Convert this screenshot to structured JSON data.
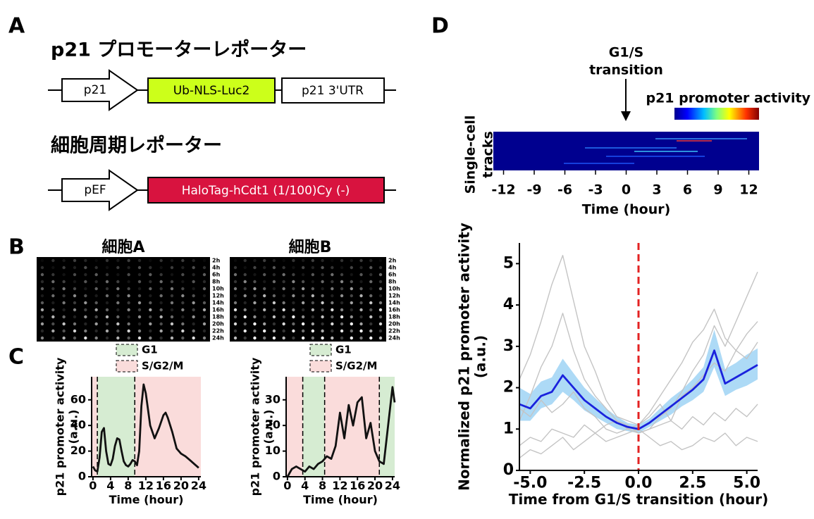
{
  "panel_labels": [
    "A",
    "B",
    "C",
    "D"
  ],
  "constructs": {
    "title_1": "p21 プロモーターレポーター",
    "row_1": [
      "p21",
      "Ub-NLS-Luc2",
      "p21 3'UTR"
    ],
    "title_2": "細胞周期レポーター",
    "row_2": [
      "pEF",
      "HaloTag-hCdt1 (1/100)Cy (-)"
    ]
  },
  "images": {
    "titles": [
      "細胞A",
      "細胞B"
    ],
    "time_labels": [
      "2h",
      "4h",
      "6h",
      "8h",
      "10h",
      "12h",
      "14h",
      "16h",
      "18h",
      "20h",
      "22h",
      "24h"
    ]
  },
  "chart_data": [
    {
      "type": "line",
      "ylabel": [
        "p21 promoter activity",
        "(a.u.)"
      ],
      "xlabel": "Time (hour)",
      "x": [
        0,
        0.5,
        1,
        1.5,
        2,
        2.5,
        3,
        3.5,
        4,
        4.5,
        5,
        5.5,
        6,
        6.5,
        7,
        7.5,
        8,
        8.5,
        9,
        9.5,
        10,
        10.5,
        11,
        11.5,
        12,
        13,
        14,
        15,
        16,
        16.5,
        17,
        18,
        19,
        20,
        21,
        22,
        23,
        24
      ],
      "values": [
        8,
        5,
        4,
        15,
        35,
        38,
        20,
        10,
        9,
        14,
        24,
        30,
        29,
        20,
        12,
        9,
        8,
        10,
        13,
        12,
        9,
        20,
        55,
        72,
        65,
        40,
        30,
        38,
        48,
        50,
        46,
        35,
        22,
        18,
        16,
        13,
        10,
        7
      ],
      "color": "#111111",
      "xlim": [
        -0.3,
        24.5
      ],
      "ylim": [
        0,
        78
      ],
      "xticks": [
        0,
        4,
        8,
        12,
        16,
        20,
        24
      ],
      "yticks": [
        0,
        20,
        40,
        60
      ],
      "phases": [
        {
          "name": "G1",
          "color": "#d6ecd2",
          "spans": [
            [
              1,
              9.5
            ]
          ]
        },
        {
          "name": "S/G2/M",
          "color": "#fadcdb",
          "spans": [
            [
              -0.3,
              1
            ],
            [
              9.5,
              24.5
            ]
          ]
        }
      ],
      "dividers": [
        1,
        9.5
      ]
    },
    {
      "type": "line",
      "ylabel": [
        "p21 promoter activity",
        "(a.u.)"
      ],
      "xlabel": "Time (hour)",
      "x": [
        0,
        1,
        2,
        3,
        4,
        5,
        6,
        7,
        8,
        9,
        10,
        11,
        12,
        13,
        14,
        15,
        16,
        17,
        18,
        19,
        20,
        21,
        22,
        23,
        24,
        24.5
      ],
      "values": [
        0,
        3,
        4,
        3,
        2,
        4,
        3,
        5,
        6,
        8,
        7,
        12,
        25,
        15,
        28,
        20,
        29,
        31,
        15,
        21,
        10,
        6,
        5,
        20,
        35,
        29
      ],
      "color": "#111111",
      "xlim": [
        -0.3,
        24.5
      ],
      "ylim": [
        0,
        39
      ],
      "xticks": [
        0,
        4,
        8,
        12,
        16,
        20,
        24
      ],
      "yticks": [
        0,
        10,
        20,
        30
      ],
      "phases": [
        {
          "name": "G1",
          "color": "#d6ecd2",
          "spans": [
            [
              3.5,
              8.5
            ],
            [
              21,
              24.5
            ]
          ]
        },
        {
          "name": "S/G2/M",
          "color": "#fadcdb",
          "spans": [
            [
              -0.3,
              3.5
            ],
            [
              8.5,
              21
            ]
          ]
        }
      ],
      "dividers": [
        3.5,
        8.5,
        21
      ]
    },
    {
      "type": "heatmap",
      "xlabel": "Time (hour)",
      "ylabel": [
        "Single-cell",
        "tracks"
      ],
      "xlim": [
        -13,
        13
      ],
      "xticks": [
        -12,
        -9,
        -6,
        -3,
        0,
        3,
        6,
        9,
        12
      ],
      "annotation": [
        "G1/S",
        "transition"
      ],
      "annotation_x": 0,
      "colorbar_label": "p21 promoter activity"
    },
    {
      "type": "line",
      "ylabel": [
        "Normalized p21 promoter activity",
        "(a.u.)"
      ],
      "xlabel": "Time from G1/S transition (hour)",
      "x": [
        -5.5,
        -5,
        -4.5,
        -4,
        -3.5,
        -3,
        -2.5,
        -2,
        -1.5,
        -1,
        -0.5,
        0,
        0.5,
        1,
        1.5,
        2,
        2.5,
        3,
        3.5,
        4,
        4.5,
        5,
        5.5
      ],
      "xlim": [
        -5.5,
        5.5
      ],
      "ylim": [
        0,
        5.5
      ],
      "xticks": [
        {
          "value": -5,
          "label": "-5.0"
        },
        -2.5,
        {
          "value": 0,
          "label": "0.0"
        },
        2.5,
        {
          "value": 5,
          "label": "5.0"
        }
      ],
      "yticks": [
        0,
        1,
        2,
        3,
        4,
        5
      ],
      "vline": {
        "x": 0,
        "color": "#e32222"
      },
      "band": {
        "color": "#9fd3f5",
        "lower": [
          1.2,
          1.2,
          1.5,
          1.6,
          1.9,
          1.7,
          1.45,
          1.3,
          1.15,
          1.0,
          0.95,
          0.9,
          1.05,
          1.2,
          1.35,
          1.55,
          1.7,
          1.9,
          2.5,
          1.8,
          1.95,
          2.05,
          2.2
        ],
        "upper": [
          2.0,
          1.85,
          2.15,
          2.25,
          2.7,
          2.35,
          2.0,
          1.75,
          1.5,
          1.3,
          1.15,
          1.1,
          1.25,
          1.5,
          1.75,
          1.95,
          2.2,
          2.5,
          3.4,
          2.45,
          2.6,
          2.8,
          2.95
        ]
      },
      "series": [
        {
          "color": "#c4c4c4",
          "values": [
            1.2,
            1.8,
            2.5,
            3.0,
            3.8,
            2.9,
            2.2,
            1.8,
            1.5,
            1.2,
            1.1,
            0.9,
            1.0,
            1.3,
            1.5,
            1.9,
            2.4,
            2.8,
            3.5,
            3.0,
            3.6,
            4.2,
            4.8
          ]
        },
        {
          "color": "#c4c4c4",
          "values": [
            0.6,
            0.8,
            0.7,
            1.0,
            0.9,
            0.8,
            1.1,
            0.9,
            0.7,
            0.8,
            0.9,
            1.0,
            0.8,
            0.6,
            0.7,
            0.5,
            0.6,
            0.8,
            0.7,
            0.9,
            0.6,
            0.8,
            0.7
          ]
        },
        {
          "color": "#c4c4c4",
          "values": [
            2.2,
            2.8,
            3.6,
            4.5,
            5.2,
            4.1,
            3.0,
            2.4,
            1.7,
            1.3,
            1.2,
            1.1,
            1.4,
            1.8,
            2.2,
            2.6,
            3.1,
            3.4,
            3.9,
            3.2,
            2.9,
            3.3,
            3.6
          ]
        },
        {
          "color": "#c4c4c4",
          "values": [
            0.3,
            0.5,
            0.4,
            0.6,
            0.8,
            0.5,
            0.7,
            0.9,
            1.1,
            1.2,
            1.0,
            0.9,
            1.0,
            1.1,
            1.2,
            1.0,
            1.3,
            1.1,
            1.4,
            1.2,
            1.5,
            1.3,
            1.6
          ]
        },
        {
          "color": "#c4c4c4",
          "values": [
            1.5,
            1.3,
            1.7,
            1.4,
            1.6,
            1.9,
            1.5,
            1.3,
            1.0,
            0.9,
            1.0,
            1.1,
            1.3,
            1.6,
            1.2,
            1.8,
            2.0,
            2.3,
            2.6,
            2.4,
            2.9,
            2.7,
            3.1
          ]
        },
        {
          "color": "#1a22dd",
          "values": [
            1.6,
            1.5,
            1.8,
            1.9,
            2.3,
            2.0,
            1.7,
            1.5,
            1.3,
            1.15,
            1.05,
            1.0,
            1.15,
            1.35,
            1.55,
            1.75,
            1.95,
            2.2,
            2.9,
            2.1,
            2.25,
            2.4,
            2.55
          ]
        }
      ]
    }
  ]
}
